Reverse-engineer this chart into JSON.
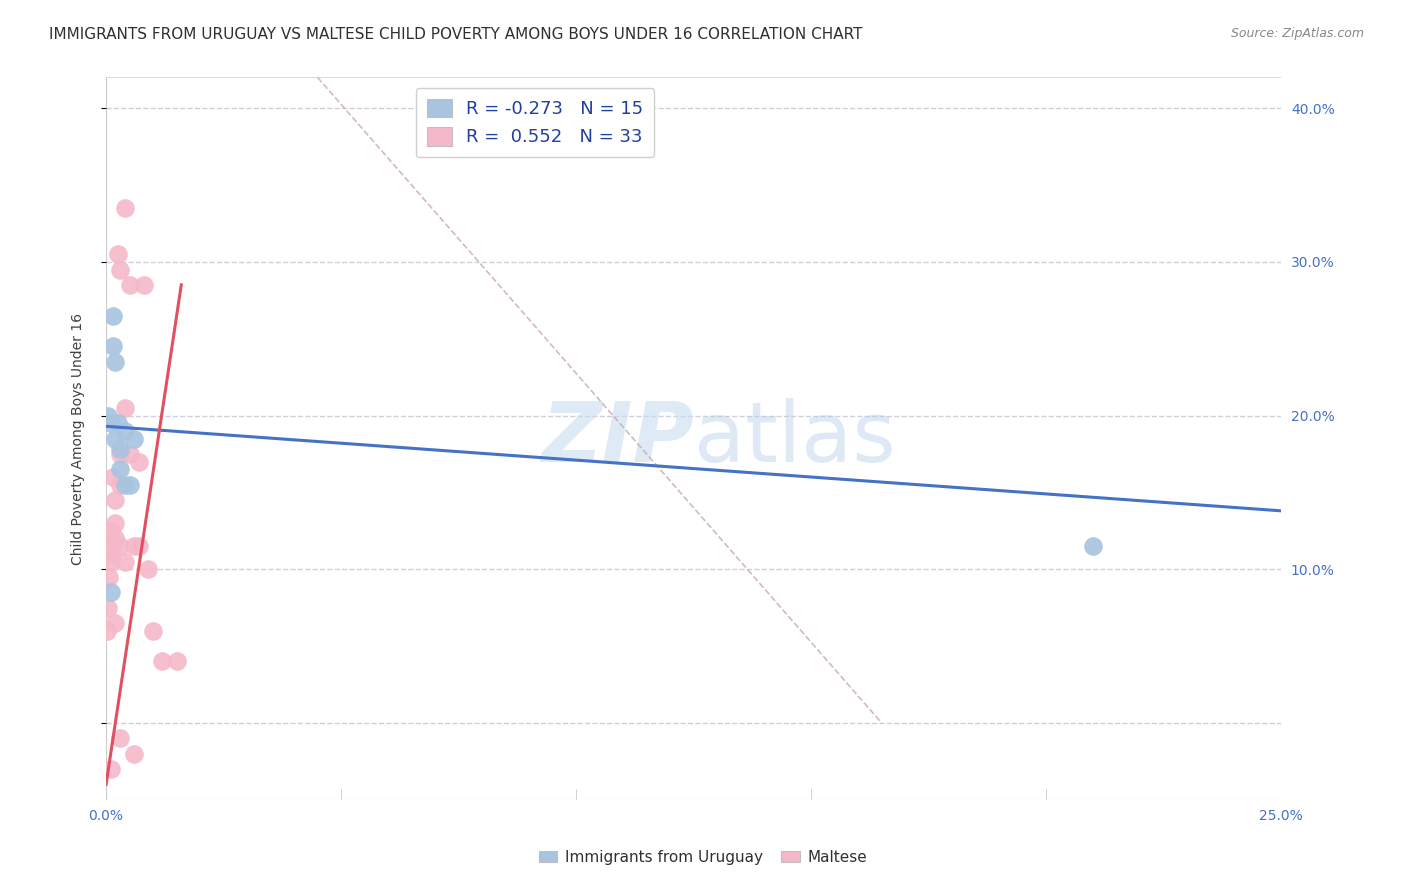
{
  "title": "IMMIGRANTS FROM URUGUAY VS MALTESE CHILD POVERTY AMONG BOYS UNDER 16 CORRELATION CHART",
  "source": "Source: ZipAtlas.com",
  "ylabel": "Child Poverty Among Boys Under 16",
  "xlim": [
    0.0,
    0.25
  ],
  "ylim": [
    -0.05,
    0.42
  ],
  "ytick_positions": [
    0.0,
    0.1,
    0.2,
    0.3,
    0.4
  ],
  "ytick_labels_right": [
    "",
    "10.0%",
    "20.0%",
    "30.0%",
    "40.0%"
  ],
  "xtick_positions": [
    0.0,
    0.05,
    0.1,
    0.15,
    0.2,
    0.25
  ],
  "xtick_labels": [
    "0.0%",
    "",
    "",
    "",
    "",
    "25.0%"
  ],
  "blue_R": -0.273,
  "blue_N": 15,
  "pink_R": 0.552,
  "pink_N": 33,
  "blue_scatter_x": [
    0.0005,
    0.001,
    0.001,
    0.0015,
    0.0015,
    0.002,
    0.002,
    0.0025,
    0.003,
    0.003,
    0.004,
    0.004,
    0.005,
    0.006,
    0.21
  ],
  "blue_scatter_y": [
    0.2,
    0.195,
    0.085,
    0.265,
    0.245,
    0.235,
    0.185,
    0.195,
    0.178,
    0.165,
    0.155,
    0.19,
    0.155,
    0.185,
    0.115
  ],
  "pink_scatter_x": [
    0.0003,
    0.0005,
    0.0007,
    0.001,
    0.001,
    0.001,
    0.001,
    0.001,
    0.0015,
    0.002,
    0.002,
    0.002,
    0.002,
    0.0025,
    0.003,
    0.003,
    0.003,
    0.003,
    0.003,
    0.004,
    0.004,
    0.004,
    0.005,
    0.005,
    0.006,
    0.006,
    0.007,
    0.007,
    0.008,
    0.009,
    0.01,
    0.012,
    0.015
  ],
  "pink_scatter_y": [
    0.06,
    0.075,
    0.095,
    0.125,
    0.115,
    0.11,
    0.105,
    -0.03,
    0.16,
    0.145,
    0.13,
    0.12,
    0.065,
    0.305,
    0.295,
    0.175,
    0.155,
    0.115,
    -0.01,
    0.335,
    0.205,
    0.105,
    0.285,
    0.175,
    0.115,
    -0.02,
    0.17,
    0.115,
    0.285,
    0.1,
    0.06,
    0.04,
    0.04
  ],
  "blue_color": "#a8c4e0",
  "pink_color": "#f4b8c8",
  "blue_line_color": "#4472C4",
  "pink_line_color": "#E05060",
  "diag_line_color": "#c8a8b0",
  "background_color": "#ffffff",
  "grid_color": "#d0d0d8",
  "title_fontsize": 11,
  "legend_fontsize": 13,
  "axis_label_fontsize": 10,
  "tick_fontsize": 10,
  "source_fontsize": 9,
  "blue_line_x": [
    0.0,
    0.25
  ],
  "blue_line_y": [
    0.193,
    0.138
  ],
  "pink_line_x": [
    0.0,
    0.016
  ],
  "pink_line_y": [
    -0.04,
    0.285
  ],
  "diag_line_x": [
    0.045,
    0.165
  ],
  "diag_line_y": [
    0.42,
    0.0
  ]
}
